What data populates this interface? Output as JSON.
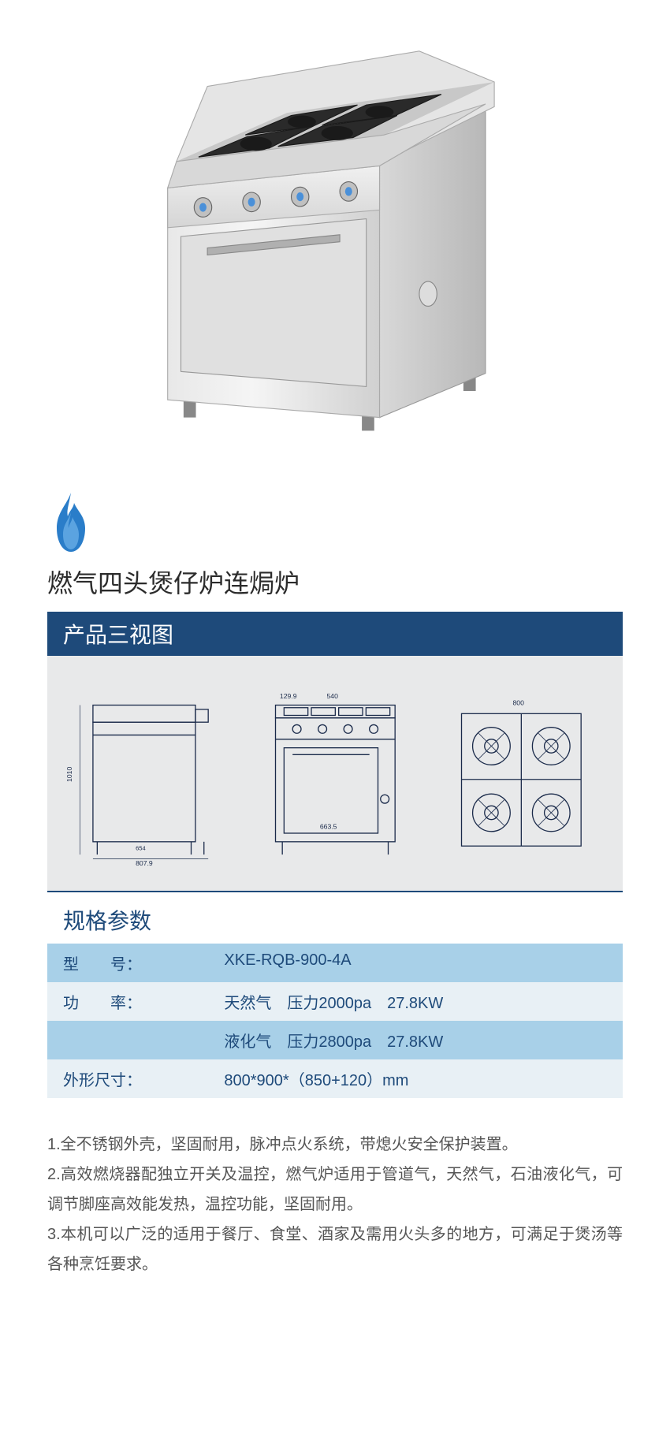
{
  "product": {
    "title": "燃气四头煲仔炉连焗炉"
  },
  "sections": {
    "three_view_title": "产品三视图",
    "spec_title": "规格参数"
  },
  "specs": {
    "rows": [
      {
        "label": "型　　号：",
        "value": "XKE-RQB-900-4A",
        "row_class": "row-blue"
      },
      {
        "label": "功　　率：",
        "value": "天然气　压力2000pa　27.8KW",
        "row_class": "row-light"
      },
      {
        "label": "",
        "value": "液化气　压力2800pa　27.8KW",
        "row_class": "row-blue"
      },
      {
        "label": "外形尺寸：",
        "value": "800*900*（850+120）mm",
        "row_class": "row-light"
      }
    ]
  },
  "features": {
    "items": [
      "1.全不锈钢外壳，坚固耐用，脉冲点火系统，带熄火安全保护装置。",
      "2.高效燃烧器配独立开关及温控，燃气炉适用于管道气，天然气，石油液化气，可调节脚座高效能发热，温控功能，坚固耐用。",
      "3.本机可以广泛的适用于餐厅、食堂、酒家及需用火头多的地方，可满足于煲汤等各种烹饪要求。"
    ]
  },
  "colors": {
    "brand_navy": "#1e4a7a",
    "table_blue": "#a8d0e8",
    "table_light": "#e8f0f5",
    "gray_bg": "#e8e9ea",
    "text_dark": "#333333",
    "text_body": "#555555",
    "flame_blue": "#2a7dc9",
    "flame_light": "#5ba3e0"
  },
  "diagram_labels": {
    "side_view": {
      "height_total": "1010",
      "width_base": "807.9",
      "width_top": "654"
    },
    "front_view": {
      "width_top": "540",
      "width_offset": "129.9",
      "base_width": "663.5"
    },
    "top_view": {
      "width": "800"
    }
  }
}
